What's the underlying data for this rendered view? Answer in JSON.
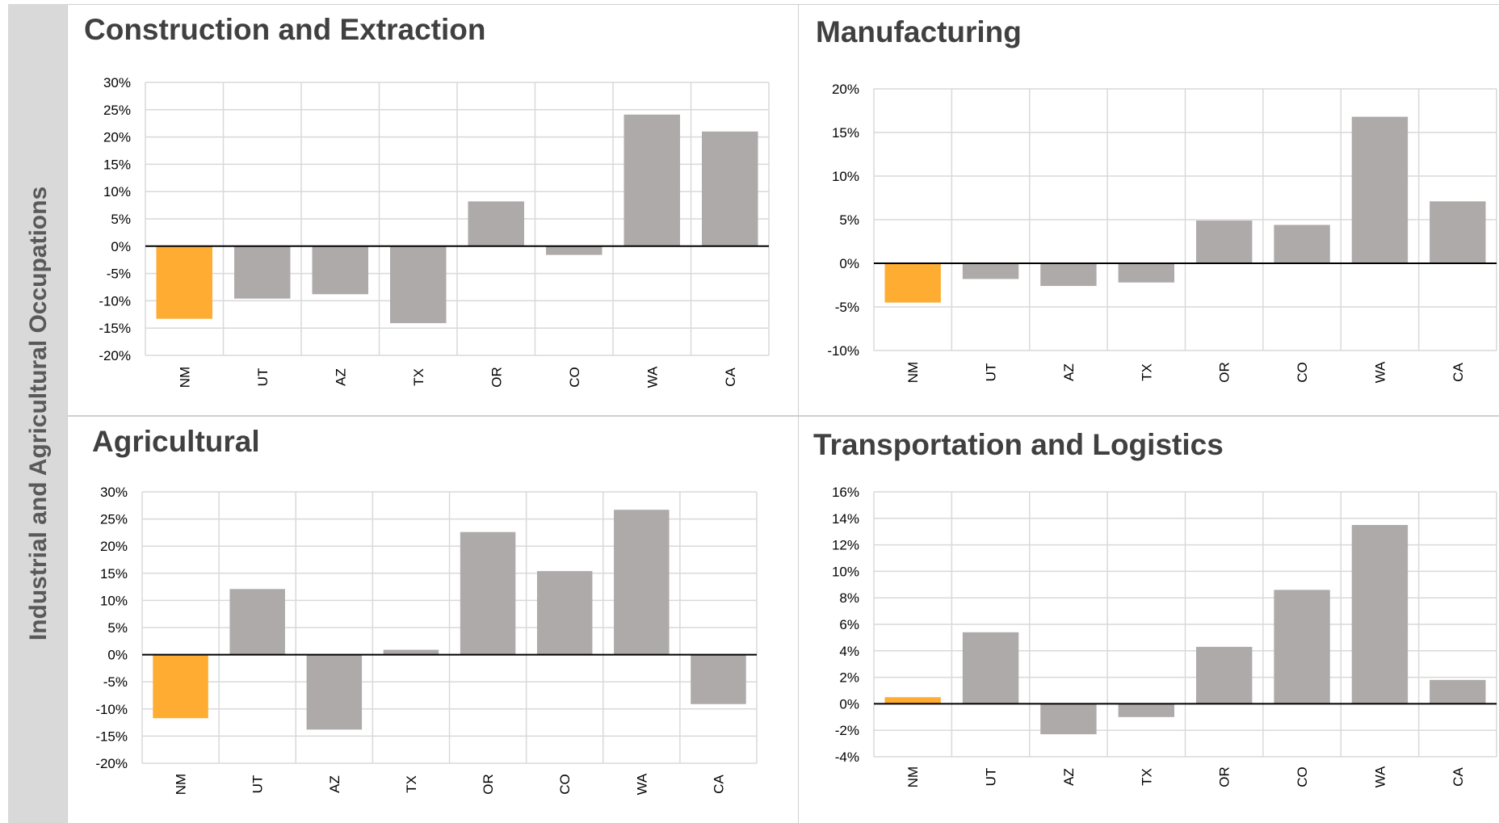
{
  "side_label": "Industrial and Agricultural Occupations",
  "colors": {
    "highlight": "#FFAC33",
    "bar": "#AEAAAA",
    "grid": "#d9d9d9",
    "zero_line": "#000000"
  },
  "chart_data": [
    {
      "type": "bar",
      "title": "Construction and Extraction",
      "categories": [
        "NM",
        "UT",
        "AZ",
        "TX",
        "OR",
        "CO",
        "WA",
        "CA"
      ],
      "values": [
        -13.3,
        -9.6,
        -8.8,
        -14.1,
        8.2,
        -1.6,
        24.1,
        21.0
      ],
      "highlight_category": "NM",
      "ylim": [
        -20,
        30
      ],
      "ystep": 5,
      "yformat": "percent",
      "yticks": [
        "-20%",
        "-15%",
        "-10%",
        "-5%",
        "0%",
        "5%",
        "10%",
        "15%",
        "20%",
        "25%",
        "30%"
      ],
      "grid": true,
      "legend": "none"
    },
    {
      "type": "bar",
      "title": "Manufacturing",
      "categories": [
        "NM",
        "UT",
        "AZ",
        "TX",
        "OR",
        "CO",
        "WA",
        "CA"
      ],
      "values": [
        -4.5,
        -1.8,
        -2.6,
        -2.2,
        4.9,
        4.4,
        16.8,
        7.1
      ],
      "highlight_category": "NM",
      "ylim": [
        -10,
        20
      ],
      "ystep": 5,
      "yformat": "percent",
      "yticks": [
        "-10%",
        "-5%",
        "0%",
        "5%",
        "10%",
        "15%",
        "20%"
      ],
      "grid": true,
      "legend": "none"
    },
    {
      "type": "bar",
      "title": "Agricultural",
      "categories": [
        "NM",
        "UT",
        "AZ",
        "TX",
        "OR",
        "CO",
        "WA",
        "CA"
      ],
      "values": [
        -11.7,
        12.1,
        -13.8,
        0.9,
        22.6,
        15.4,
        26.7,
        -9.1
      ],
      "highlight_category": "NM",
      "ylim": [
        -20,
        30
      ],
      "ystep": 5,
      "yformat": "percent",
      "yticks": [
        "-20%",
        "-15%",
        "-10%",
        "-5%",
        "0%",
        "5%",
        "10%",
        "15%",
        "20%",
        "25%",
        "30%"
      ],
      "grid": true,
      "legend": "none"
    },
    {
      "type": "bar",
      "title": "Transportation and Logistics",
      "categories": [
        "NM",
        "UT",
        "AZ",
        "TX",
        "OR",
        "CO",
        "WA",
        "CA"
      ],
      "values": [
        0.5,
        5.4,
        -2.3,
        -1.0,
        4.3,
        8.6,
        13.5,
        1.8
      ],
      "highlight_category": "NM",
      "ylim": [
        -4,
        16
      ],
      "ystep": 2,
      "yformat": "percent",
      "yticks": [
        "-4%",
        "-2%",
        "0%",
        "2%",
        "4%",
        "6%",
        "8%",
        "10%",
        "12%",
        "14%",
        "16%"
      ],
      "grid": true,
      "legend": "none"
    }
  ]
}
